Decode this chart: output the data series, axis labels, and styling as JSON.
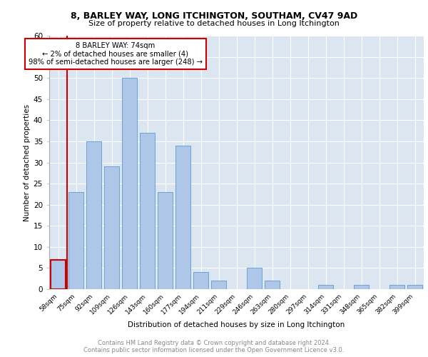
{
  "title1": "8, BARLEY WAY, LONG ITCHINGTON, SOUTHAM, CV47 9AD",
  "title2": "Size of property relative to detached houses in Long Itchington",
  "xlabel": "Distribution of detached houses by size in Long Itchington",
  "ylabel": "Number of detached properties",
  "footnote": "Contains HM Land Registry data © Crown copyright and database right 2024.\nContains public sector information licensed under the Open Government Licence v3.0.",
  "annotation_line1": "8 BARLEY WAY: 74sqm",
  "annotation_line2": "← 2% of detached houses are smaller (4)",
  "annotation_line3": "98% of semi-detached houses are larger (248) →",
  "bar_color": "#aec6e8",
  "bar_edge_color": "#5b9bd5",
  "highlight_color": "#cc0000",
  "annotation_box_color": "#ffffff",
  "annotation_box_edge": "#cc0000",
  "background_color": "#dce6f1",
  "plot_bg_color": "#dce6f1",
  "categories": [
    "58sqm",
    "75sqm",
    "92sqm",
    "109sqm",
    "126sqm",
    "143sqm",
    "160sqm",
    "177sqm",
    "194sqm",
    "211sqm",
    "229sqm",
    "246sqm",
    "263sqm",
    "280sqm",
    "297sqm",
    "314sqm",
    "331sqm",
    "348sqm",
    "365sqm",
    "382sqm",
    "399sqm"
  ],
  "values": [
    7,
    23,
    35,
    29,
    50,
    37,
    23,
    34,
    4,
    2,
    0,
    5,
    2,
    0,
    0,
    1,
    0,
    1,
    0,
    1,
    1
  ],
  "highlight_bar_index": 0,
  "vline_x": 0.5,
  "ylim": [
    0,
    60
  ],
  "yticks": [
    0,
    5,
    10,
    15,
    20,
    25,
    30,
    35,
    40,
    45,
    50,
    55,
    60
  ]
}
